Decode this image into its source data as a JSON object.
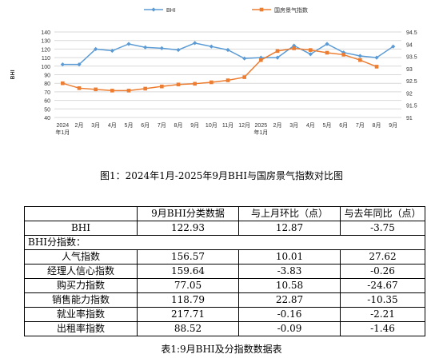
{
  "chart_data": {
    "type": "line",
    "legend_position": "top",
    "ylabel_left": "BHI",
    "y_left": {
      "min": 40,
      "max": 140,
      "ticks": [
        40,
        50,
        60,
        70,
        80,
        90,
        100,
        110,
        120,
        130,
        140
      ]
    },
    "y_right": {
      "min": 91,
      "max": 94.5,
      "ticks": [
        "91",
        "91.5",
        "92",
        "92.5",
        "93",
        "93.5",
        "94",
        "94.5"
      ]
    },
    "x_ticks": [
      [
        "2024",
        "年1月"
      ],
      [
        "2月"
      ],
      [
        "3月"
      ],
      [
        "4月"
      ],
      [
        "5月"
      ],
      [
        "6月"
      ],
      [
        "7月"
      ],
      [
        "8月"
      ],
      [
        "9月"
      ],
      [
        "10月"
      ],
      [
        "11月"
      ],
      [
        "12月"
      ],
      [
        "2025",
        "年1月"
      ],
      [
        "2月"
      ],
      [
        "3月"
      ],
      [
        "4月"
      ],
      [
        "5月"
      ],
      [
        "6月"
      ],
      [
        "7月"
      ],
      [
        "8月"
      ],
      [
        "9月"
      ]
    ],
    "series": [
      {
        "name": "BHI",
        "axis": "left",
        "color": "#5b9bd5",
        "marker": "diamond",
        "values": [
          102,
          102,
          120,
          118,
          126,
          122,
          121,
          119,
          127,
          123,
          119,
          109,
          110,
          110,
          124,
          114,
          126,
          116,
          112,
          110,
          123
        ]
      },
      {
        "name": "国房景气指数",
        "axis": "right",
        "color": "#ed7d31",
        "marker": "square",
        "values": [
          92.4,
          92.2,
          92.15,
          92.1,
          92.1,
          92.18,
          92.27,
          92.35,
          92.38,
          92.44,
          92.52,
          92.65,
          93.35,
          93.72,
          93.83,
          93.76,
          93.65,
          93.57,
          93.35,
          93.08,
          null
        ]
      }
    ]
  },
  "figure_caption": "图1：2024年1月-2025年9月BHI与国房景气指数对比图",
  "table": {
    "headers": [
      "",
      "9月BHI分类数据",
      "与上月环比（点）",
      "与去年同比（点）"
    ],
    "bhi_row": {
      "label": "BHI",
      "value": "122.93",
      "mom": "12.87",
      "yoy": "-3.75"
    },
    "section_label": "BHI分指数：",
    "sub_rows": [
      {
        "label": "人气指数",
        "value": "156.57",
        "mom": "10.01",
        "yoy": "27.62"
      },
      {
        "label": "经理人信心指数",
        "value": "159.64",
        "mom": "-3.83",
        "yoy": "-0.26"
      },
      {
        "label": "购买力指数",
        "value": "77.05",
        "mom": "10.58",
        "yoy": "-24.67"
      },
      {
        "label": "销售能力指数",
        "value": "118.79",
        "mom": "22.87",
        "yoy": "-10.35"
      },
      {
        "label": "就业率指数",
        "value": "217.71",
        "mom": "-0.16",
        "yoy": "-2.21"
      },
      {
        "label": "出租率指数",
        "value": "88.52",
        "mom": "-0.09",
        "yoy": "-1.46"
      }
    ]
  },
  "table_caption": "表1:9月BHI及分指数数据表"
}
